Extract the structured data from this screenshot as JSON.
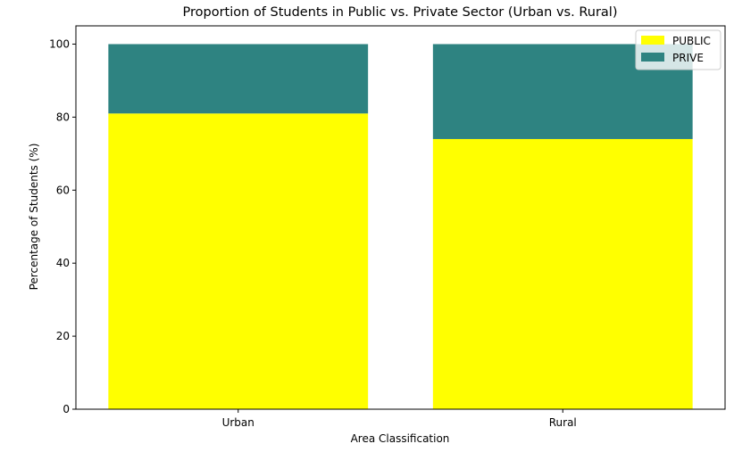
{
  "chart_data": {
    "type": "bar",
    "stacked": true,
    "title": "Proportion of Students in Public vs. Private Sector (Urban vs. Rural)",
    "xlabel": "Area Classification",
    "ylabel": "Percentage of Students (%)",
    "categories": [
      "Urban",
      "Rural"
    ],
    "ylim": [
      0,
      105
    ],
    "yticks": [
      0,
      20,
      40,
      60,
      80,
      100
    ],
    "grid": false,
    "legend_position": "top-right",
    "series": [
      {
        "name": "PUBLIC",
        "values": [
          81,
          74
        ],
        "color": "#ffff00"
      },
      {
        "name": "PRIVE",
        "values": [
          19,
          26
        ],
        "color": "#2e8381"
      }
    ]
  }
}
